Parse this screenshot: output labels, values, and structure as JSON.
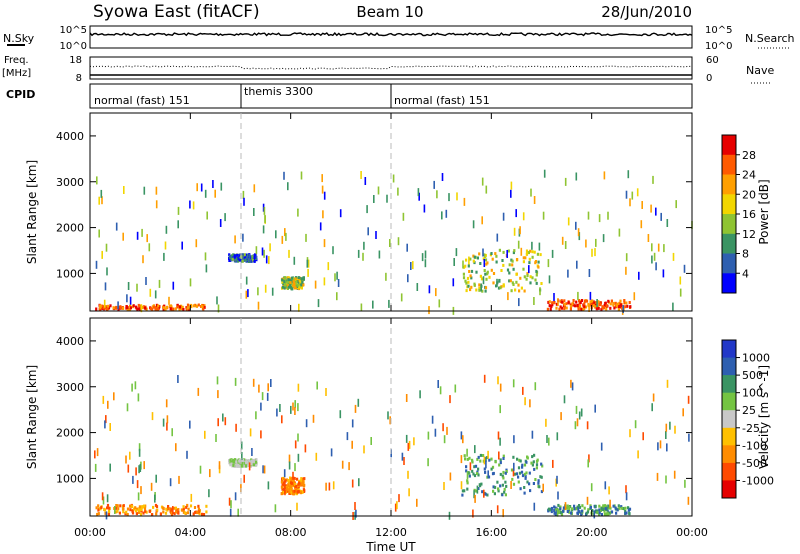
{
  "header": {
    "station": "Syowa East (fitACF)",
    "beam": "Beam 10",
    "date": "28/Jun/2010"
  },
  "noise_panel": {
    "left_label": "N.Sky",
    "left_ticks": [
      "10^5",
      "10^0"
    ],
    "right_ticks": [
      "10^5",
      "10^0"
    ],
    "right_label": "N.Search"
  },
  "freq_panel": {
    "label_top": "Freq.",
    "label_unit": "[MHz]",
    "left_ticks": [
      "18",
      "8"
    ],
    "right_ticks": [
      "60",
      "0"
    ],
    "right_label": "Nave"
  },
  "cpid_panel": {
    "label": "CPID",
    "segments": [
      {
        "name": "normal (fast) 151",
        "start_hour": 0
      },
      {
        "name": "themis 3300",
        "start_hour": 6
      },
      {
        "name": "normal (fast) 151",
        "start_hour": 12
      }
    ]
  },
  "x_axis": {
    "label": "Time UT",
    "ticks": [
      "00:00",
      "04:00",
      "08:00",
      "12:00",
      "16:00",
      "20:00",
      "00:00"
    ],
    "range_hours": [
      0,
      24
    ]
  },
  "chart_data": [
    {
      "type": "heatmap",
      "name": "power",
      "ylabel": "Slant Range [km]",
      "ylim": [
        180,
        4500
      ],
      "yticks": [
        1000,
        2000,
        3000,
        4000
      ],
      "colorbar": {
        "label": "Power [dB]",
        "tick_labels": [
          "28",
          "24",
          "20",
          "16",
          "12",
          "8",
          "4"
        ],
        "colors": [
          "#e60000",
          "#ff5a00",
          "#ff9f00",
          "#f2d600",
          "#8fc432",
          "#3a9463",
          "#2e5fb0",
          "#0000ff"
        ]
      },
      "features": [
        {
          "hours": [
            0.2,
            4.6
          ],
          "km": [
            200,
            300
          ],
          "level": "high"
        },
        {
          "hours": [
            5.5,
            6.6
          ],
          "km": [
            1250,
            1400
          ],
          "level": "low"
        },
        {
          "hours": [
            7.6,
            8.5
          ],
          "km": [
            650,
            900
          ],
          "level": "mid"
        },
        {
          "hours": [
            14.8,
            18.0
          ],
          "km": [
            600,
            1500
          ],
          "level": "mid"
        },
        {
          "hours": [
            18.2,
            21.5
          ],
          "km": [
            200,
            400
          ],
          "level": "high"
        }
      ]
    },
    {
      "type": "heatmap",
      "name": "velocity",
      "ylabel": "Slant Range [km]",
      "ylim": [
        180,
        4500
      ],
      "yticks": [
        1000,
        2000,
        3000,
        4000
      ],
      "colorbar": {
        "label": "Velocity [m s^-1]",
        "tick_labels": [
          "1000",
          "500",
          "100",
          "25",
          "-25",
          "-100",
          "-500",
          "-1000"
        ],
        "colors": [
          "#2238c8",
          "#2e5fb0",
          "#3a9463",
          "#74c442",
          "#c8c8c8",
          "#ffc000",
          "#ff8c00",
          "#ff4a00",
          "#e60000"
        ]
      },
      "features": [
        {
          "hours": [
            0.2,
            4.6
          ],
          "km": [
            200,
            400
          ],
          "level": "negative"
        },
        {
          "hours": [
            5.5,
            6.6
          ],
          "km": [
            1250,
            1400
          ],
          "level": "near-zero"
        },
        {
          "hours": [
            7.6,
            8.5
          ],
          "km": [
            650,
            1000
          ],
          "level": "negative"
        },
        {
          "hours": [
            14.8,
            18.0
          ],
          "km": [
            600,
            1500
          ],
          "level": "positive"
        },
        {
          "hours": [
            18.2,
            21.5
          ],
          "km": [
            200,
            400
          ],
          "level": "positive"
        }
      ]
    }
  ]
}
